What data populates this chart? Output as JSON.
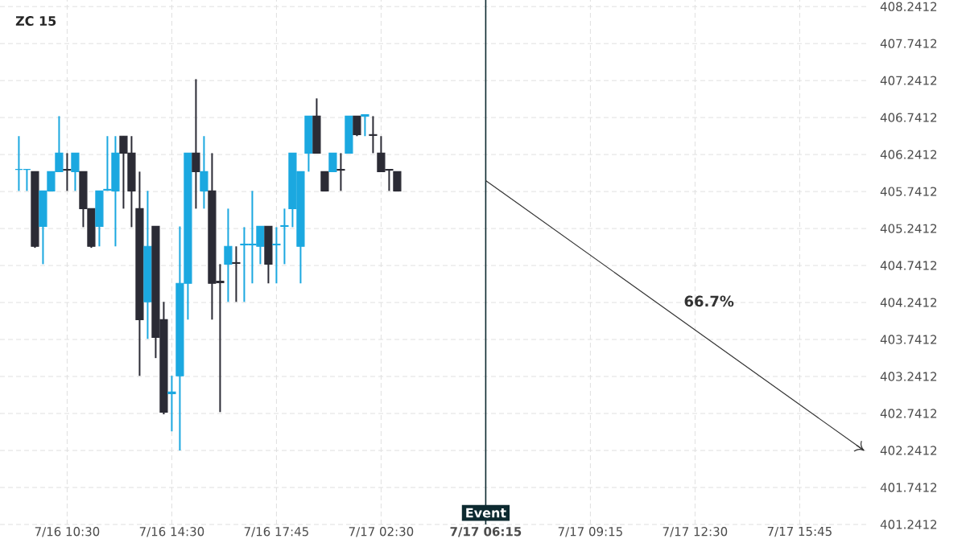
{
  "chart_data": {
    "type": "candlestick",
    "title": "ZC 15",
    "categories": [
      null,
      null,
      null,
      null,
      null,
      null,
      "7/16 10:30",
      null,
      null,
      null,
      null,
      null,
      null,
      null,
      null,
      null,
      null,
      null,
      null,
      "7/16 14:30",
      null,
      null,
      null,
      null,
      null,
      null,
      null,
      null,
      null,
      null,
      null,
      null,
      "7/16 17:45",
      null,
      null,
      null,
      null,
      null,
      null,
      null,
      null,
      null,
      null,
      null,
      null,
      "7/17 02:30",
      null,
      null,
      null,
      null,
      null,
      null,
      null,
      null,
      null,
      null,
      null,
      null,
      "7/17 06:15",
      null,
      null,
      null,
      null,
      null,
      null,
      null,
      null,
      null,
      null,
      null,
      null,
      "7/17 09:15",
      null,
      null,
      null,
      null,
      null,
      null,
      null,
      null,
      null,
      null,
      null,
      null,
      "7/17 12:30",
      null,
      null,
      null,
      null,
      null,
      null,
      null,
      null,
      null,
      null,
      null,
      null,
      "7/17 15:45",
      null,
      null,
      null,
      null,
      null,
      null,
      null,
      null
    ],
    "ohlc": [
      [
        406.04,
        406.49,
        405.75,
        406.04
      ],
      [
        406.04,
        406.04,
        405.75,
        406.04
      ],
      [
        406.01,
        406.01,
        404.98,
        405.0
      ],
      [
        405.27,
        405.75,
        404.76,
        405.75
      ],
      [
        405.75,
        406.01,
        405.75,
        406.01
      ],
      [
        406.01,
        406.76,
        406.01,
        406.26
      ],
      [
        406.04,
        406.26,
        405.75,
        406.03
      ],
      [
        406.01,
        406.26,
        405.75,
        406.26
      ],
      [
        406.01,
        406.01,
        405.26,
        405.51
      ],
      [
        405.51,
        405.51,
        404.98,
        405.0
      ],
      [
        405.27,
        405.75,
        405.0,
        405.75
      ],
      [
        405.76,
        406.49,
        405.75,
        405.77
      ],
      [
        405.75,
        406.49,
        405.0,
        406.26
      ],
      [
        406.49,
        406.49,
        405.51,
        406.26
      ],
      [
        406.26,
        406.49,
        405.26,
        405.75
      ],
      [
        405.51,
        406.01,
        403.25,
        404.01
      ],
      [
        404.25,
        405.75,
        403.75,
        405.0
      ],
      [
        405.27,
        405.27,
        403.49,
        403.77
      ],
      [
        404.01,
        404.25,
        402.73,
        402.76
      ],
      [
        403.01,
        403.25,
        402.5,
        403.03
      ],
      [
        403.25,
        405.27,
        402.24,
        404.5
      ],
      [
        404.5,
        406.26,
        404.01,
        406.26
      ],
      [
        406.26,
        407.26,
        405.51,
        406.01
      ],
      [
        405.75,
        406.49,
        405.51,
        406.01
      ],
      [
        405.75,
        406.26,
        404.01,
        404.5
      ],
      [
        404.53,
        404.76,
        402.76,
        404.51
      ],
      [
        404.76,
        405.51,
        404.25,
        405.0
      ],
      [
        404.78,
        405.0,
        404.25,
        404.77
      ],
      [
        405.02,
        405.26,
        404.25,
        405.03
      ],
      [
        405.02,
        405.75,
        404.5,
        405.03
      ],
      [
        405.0,
        405.27,
        404.76,
        405.27
      ],
      [
        405.27,
        405.27,
        404.5,
        404.76
      ],
      [
        405.02,
        405.26,
        404.5,
        405.03
      ],
      [
        405.27,
        405.51,
        404.76,
        405.28
      ],
      [
        405.51,
        406.26,
        405.26,
        406.26
      ],
      [
        405.0,
        406.01,
        404.5,
        406.01
      ],
      [
        406.26,
        406.76,
        406.01,
        406.76
      ],
      [
        406.76,
        407.0,
        406.26,
        406.26
      ],
      [
        406.01,
        406.01,
        405.75,
        405.75
      ],
      [
        406.01,
        406.26,
        406.01,
        406.26
      ],
      [
        406.04,
        406.26,
        405.75,
        406.03
      ],
      [
        406.26,
        406.76,
        406.26,
        406.76
      ],
      [
        406.76,
        406.76,
        406.49,
        406.51
      ],
      [
        406.76,
        406.78,
        406.49,
        406.78
      ],
      [
        406.51,
        406.76,
        406.26,
        406.5
      ],
      [
        406.26,
        406.49,
        406.01,
        406.01
      ],
      [
        406.04,
        406.04,
        405.75,
        406.03
      ],
      [
        406.01,
        406.01,
        405.75,
        405.75
      ],
      null,
      null,
      null,
      null,
      null,
      null,
      null,
      null,
      null,
      null,
      null,
      null,
      null,
      null,
      null,
      null,
      null,
      null,
      null,
      null,
      null,
      null,
      null,
      null,
      null,
      null,
      null,
      null,
      null,
      null,
      null,
      null,
      null,
      null,
      null,
      null,
      null,
      null,
      null,
      null,
      null,
      null,
      null,
      null,
      null,
      null,
      null,
      null,
      null,
      null,
      null,
      null,
      null,
      null,
      null,
      null,
      null,
      null
    ],
    "colors": [
      "#1ba8e0",
      "#1ba8e0",
      "#2b2b35",
      "#1ba8e0",
      "#1ba8e0",
      "#1ba8e0",
      "#2b2b35",
      "#1ba8e0",
      "#2b2b35",
      "#2b2b35",
      "#1ba8e0",
      "#1ba8e0",
      "#1ba8e0",
      "#2b2b35",
      "#2b2b35",
      "#2b2b35",
      "#1ba8e0",
      "#2b2b35",
      "#2b2b35",
      "#1ba8e0",
      "#1ba8e0",
      "#1ba8e0",
      "#2b2b35",
      "#1ba8e0",
      "#2b2b35",
      "#2b2b35",
      "#1ba8e0",
      "#2b2b35",
      "#1ba8e0",
      "#1ba8e0",
      "#1ba8e0",
      "#2b2b35",
      "#1ba8e0",
      "#1ba8e0",
      "#1ba8e0",
      "#1ba8e0",
      "#1ba8e0",
      "#2b2b35",
      "#2b2b35",
      "#1ba8e0",
      "#2b2b35",
      "#1ba8e0",
      "#2b2b35",
      "#1ba8e0",
      "#2b2b35",
      "#2b2b35",
      "#2b2b35",
      "#2b2b35",
      null,
      null,
      null,
      null,
      null,
      null,
      null,
      null,
      null,
      null,
      null,
      null,
      null,
      null,
      null,
      null,
      null,
      null,
      null,
      null,
      null,
      null,
      null,
      null,
      null,
      null,
      null,
      null,
      null,
      null,
      null,
      null,
      null,
      null,
      null,
      null,
      null,
      null,
      null,
      null,
      null,
      null,
      null,
      null,
      null,
      null,
      null,
      null,
      null,
      null,
      null,
      null,
      null,
      null,
      null,
      null,
      null,
      null
    ],
    "series": [
      {
        "type": "line",
        "values": [
          null,
          null,
          null,
          null,
          null,
          null,
          null,
          null,
          null,
          null,
          null,
          null,
          null,
          null,
          null,
          null,
          null,
          null,
          null,
          null,
          null,
          null,
          null,
          null,
          null,
          null,
          null,
          null,
          null,
          null,
          null,
          null,
          null,
          null,
          null,
          null,
          null,
          null,
          null,
          null,
          null,
          null,
          null,
          null,
          null,
          null,
          null,
          null,
          null,
          null,
          null,
          null,
          null,
          null,
          null,
          null,
          null,
          null,
          405.89,
          null,
          null,
          null,
          null,
          null,
          null,
          null,
          null,
          null,
          null,
          null,
          null,
          null,
          null,
          null,
          null,
          null,
          null,
          null,
          null,
          null,
          null,
          null,
          null,
          null,
          null,
          null,
          null,
          null,
          null,
          null,
          null,
          null,
          null,
          null,
          null,
          null,
          null,
          null,
          null,
          null,
          null,
          null,
          null,
          null,
          null,
          402.24
        ],
        "color": "#333333"
      }
    ],
    "ylim": [
      401.2412,
      408.33
    ],
    "yticks": [
      401.2412,
      401.7412,
      402.2412,
      402.7412,
      403.2412,
      403.7412,
      404.2412,
      404.7412,
      405.2412,
      405.7412,
      406.2412,
      406.7412,
      407.2412,
      407.7412,
      408.2412
    ],
    "ref_lines": [
      {
        "axis": "x",
        "value": "7/17 06:15",
        "label": "Event",
        "color": "#0d2a30"
      }
    ],
    "annotations": [
      "66.7%"
    ],
    "grid": true
  }
}
